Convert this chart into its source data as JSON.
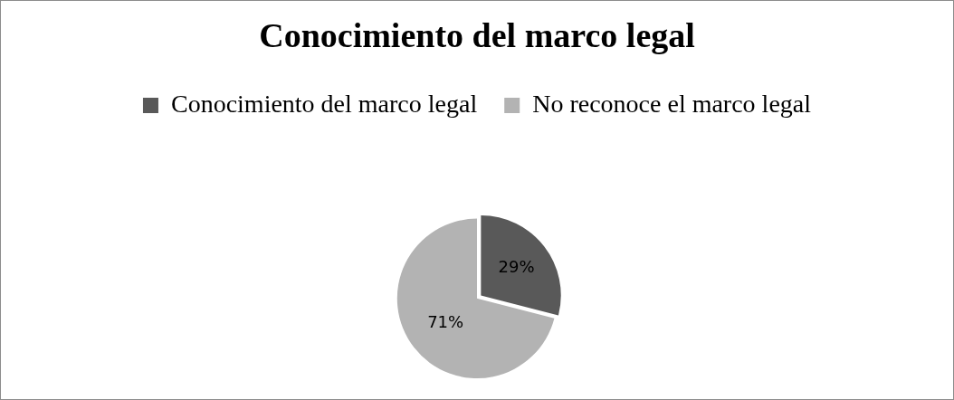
{
  "chart_data": {
    "type": "pie",
    "title": "Conocimiento del marco legal",
    "categories": [
      "Conocimiento del marco legal",
      "No reconoce el marco legal"
    ],
    "values": [
      29,
      71
    ],
    "colors": [
      "#595959",
      "#b3b3b3"
    ],
    "value_labels": [
      "29%",
      "71%"
    ],
    "legend": "top"
  }
}
